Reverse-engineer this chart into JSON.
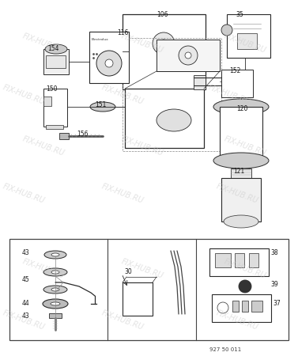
{
  "bg_color": "#ffffff",
  "watermark_text": "FIX-HUB.RU",
  "part_number_code": "927 50 011",
  "fig_width": 3.77,
  "fig_height": 4.5,
  "dpi": 100
}
